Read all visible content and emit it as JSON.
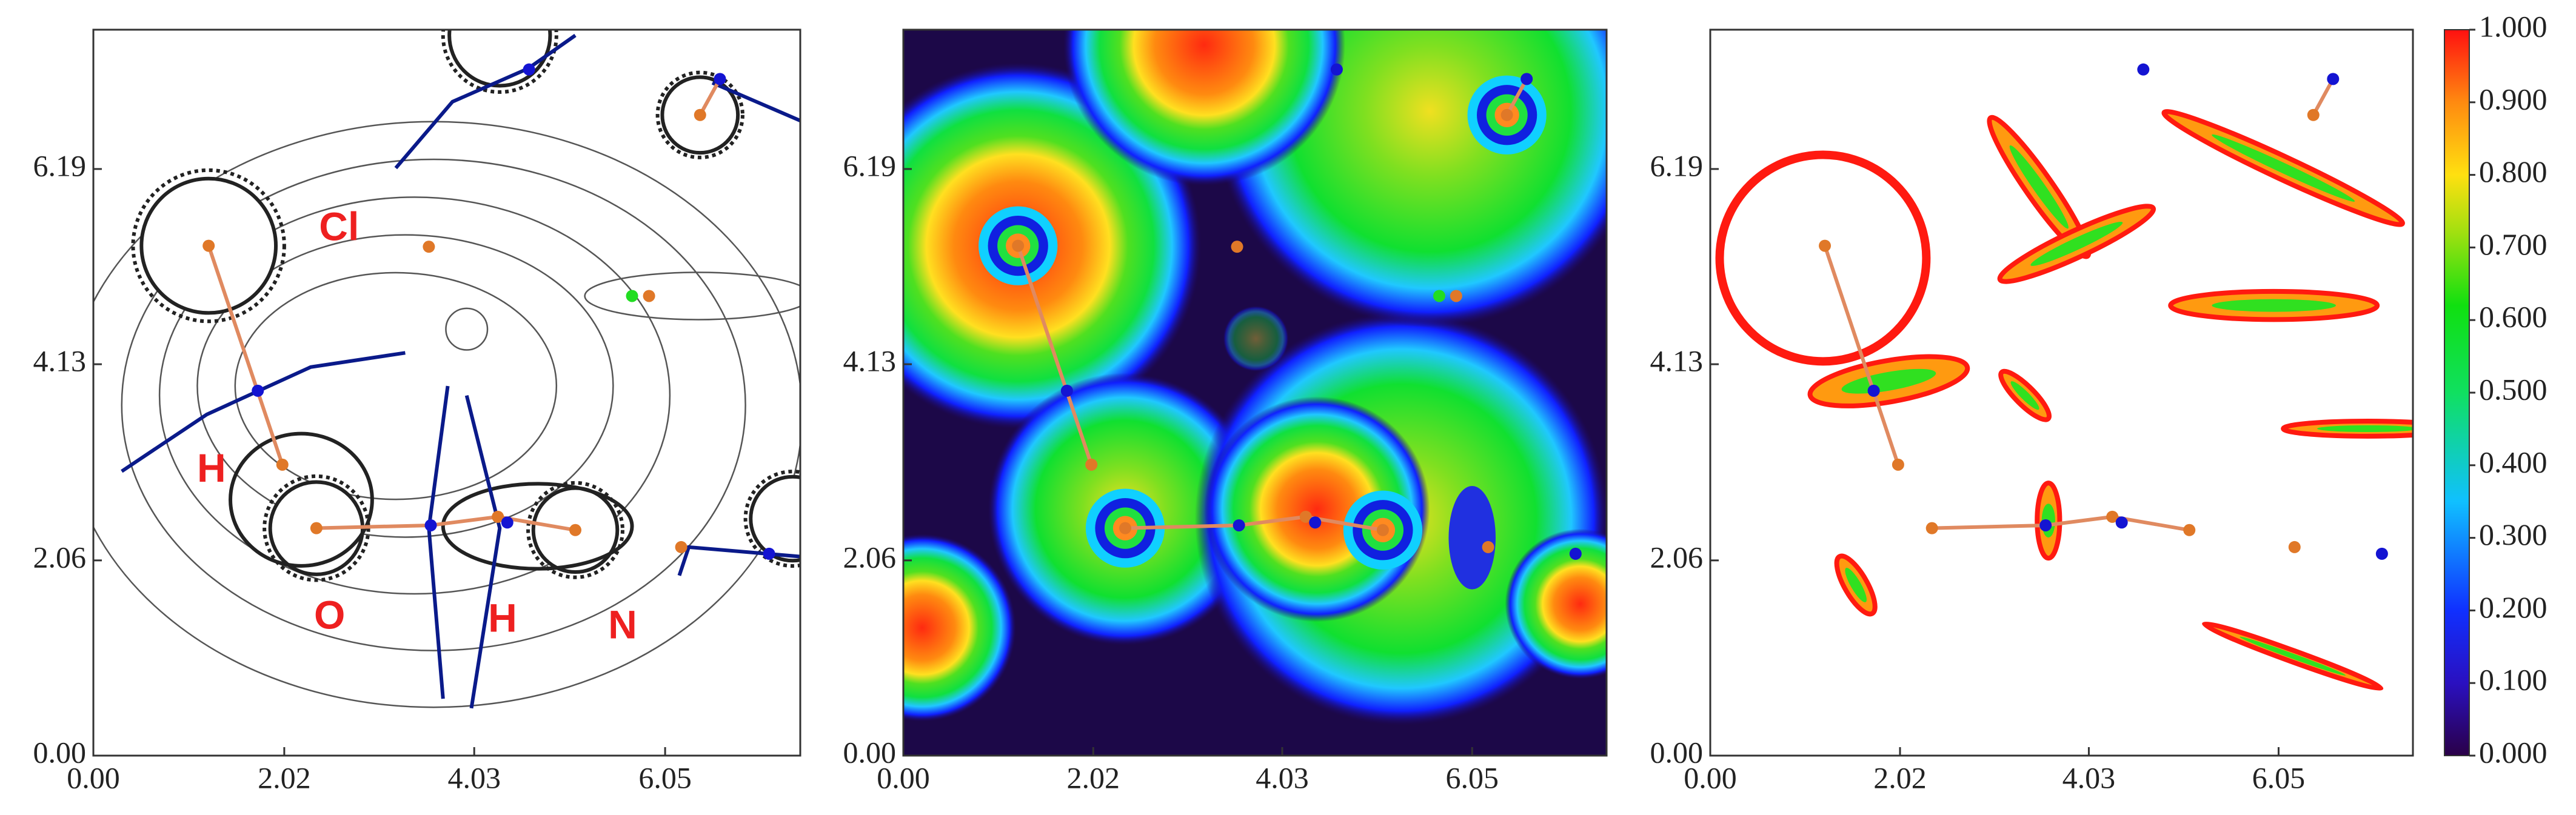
{
  "chart_data": [
    {
      "type": "contour",
      "xlim": [
        0,
        7.48
      ],
      "ylim": [
        0,
        7.66
      ],
      "xticks": [
        {
          "value": 0,
          "label": "0.00"
        },
        {
          "value": 2.02,
          "label": "2.02"
        },
        {
          "value": 4.03,
          "label": "4.03"
        },
        {
          "value": 6.05,
          "label": "6.05"
        }
      ],
      "yticks": [
        {
          "value": 0,
          "label": "0.00"
        },
        {
          "value": 2.06,
          "label": "2.06"
        },
        {
          "value": 4.13,
          "label": "4.13"
        },
        {
          "value": 6.19,
          "label": "6.19"
        }
      ],
      "annotations": [
        "Cl",
        "H",
        "O",
        "H",
        "N"
      ],
      "series": [
        {
          "color": "#e07828",
          "x": [
            1.22,
            2.0,
            2.36,
            4.28,
            5.1,
            3.55,
            5.88,
            6.22,
            6.42
          ],
          "values": [
            5.38,
            3.07,
            2.4,
            2.52,
            2.38,
            5.37,
            4.85,
            2.2,
            6.76
          ]
        },
        {
          "color": "#1414d2",
          "x": [
            1.74,
            3.57,
            4.38,
            7.15,
            6.63,
            4.61
          ],
          "values": [
            3.85,
            2.43,
            2.46,
            2.13,
            7.14,
            7.24
          ]
        },
        {
          "color": "#22dd22",
          "x": [
            5.7
          ],
          "values": [
            4.85
          ]
        }
      ]
    },
    {
      "type": "heatmap",
      "xlim": [
        0,
        7.48
      ],
      "ylim": [
        0,
        7.66
      ],
      "xticks": [
        {
          "value": 0,
          "label": "0.00"
        },
        {
          "value": 2.02,
          "label": "2.02"
        },
        {
          "value": 4.03,
          "label": "4.03"
        },
        {
          "value": 6.05,
          "label": "6.05"
        }
      ],
      "yticks": [
        {
          "value": 0,
          "label": "0.00"
        },
        {
          "value": 2.06,
          "label": "2.06"
        },
        {
          "value": 4.13,
          "label": "4.13"
        },
        {
          "value": 6.19,
          "label": "6.19"
        }
      ],
      "series": [
        {
          "color": "#e07828",
          "x": [
            1.22,
            2.0,
            2.36,
            4.28,
            5.1,
            3.55,
            5.88,
            6.22,
            6.42
          ],
          "values": [
            5.38,
            3.07,
            2.4,
            2.52,
            2.38,
            5.37,
            4.85,
            2.2,
            6.76
          ]
        },
        {
          "color": "#1414d2",
          "x": [
            1.74,
            3.57,
            4.38,
            7.15,
            6.63,
            4.61
          ],
          "values": [
            3.85,
            2.43,
            2.46,
            2.13,
            7.14,
            7.24
          ]
        },
        {
          "color": "#22dd22",
          "x": [
            5.7
          ],
          "values": [
            4.85
          ]
        }
      ]
    },
    {
      "type": "filled-contour",
      "xlim": [
        0,
        7.48
      ],
      "ylim": [
        0,
        7.66
      ],
      "xticks": [
        {
          "value": 0,
          "label": "0.00"
        },
        {
          "value": 2.02,
          "label": "2.02"
        },
        {
          "value": 4.03,
          "label": "4.03"
        },
        {
          "value": 6.05,
          "label": "6.05"
        }
      ],
      "yticks": [
        {
          "value": 0,
          "label": "0.00"
        },
        {
          "value": 2.06,
          "label": "2.06"
        },
        {
          "value": 4.13,
          "label": "4.13"
        },
        {
          "value": 6.19,
          "label": "6.19"
        }
      ],
      "zlim": [
        0,
        1
      ],
      "zticks": [
        {
          "value": 0,
          "label": "0.000"
        },
        {
          "value": 0.1,
          "label": "0.100"
        },
        {
          "value": 0.2,
          "label": "0.200"
        },
        {
          "value": 0.3,
          "label": "0.300"
        },
        {
          "value": 0.4,
          "label": "0.400"
        },
        {
          "value": 0.5,
          "label": "0.500"
        },
        {
          "value": 0.6,
          "label": "0.600"
        },
        {
          "value": 0.7,
          "label": "0.700"
        },
        {
          "value": 0.8,
          "label": "0.800"
        },
        {
          "value": 0.9,
          "label": "0.900"
        },
        {
          "value": 1,
          "label": "1.000"
        }
      ],
      "series": [
        {
          "color": "#e07828",
          "x": [
            1.22,
            2.0,
            2.36,
            4.28,
            5.1,
            6.22,
            6.42
          ],
          "values": [
            5.38,
            3.07,
            2.4,
            2.52,
            2.38,
            2.2,
            6.76
          ]
        },
        {
          "color": "#1414d2",
          "x": [
            1.74,
            3.57,
            4.38,
            7.15,
            6.63,
            4.61
          ],
          "values": [
            3.85,
            2.43,
            2.46,
            2.13,
            7.14,
            7.24
          ]
        }
      ]
    }
  ]
}
